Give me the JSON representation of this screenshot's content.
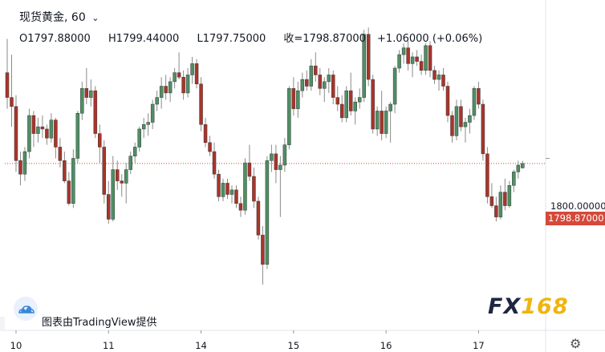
{
  "header": {
    "symbol": "现货黄金",
    "interval": "60",
    "separator": ",",
    "open_label": "O1797.88000",
    "high_label": "H1799.44000",
    "low_label": "L1797.75000",
    "close_label": "收=1798.87000",
    "change_label": "+1.06000 (+0.06%)"
  },
  "attribution": "图表由TradingView提供",
  "brand": {
    "prefix": "FX",
    "suffix": "168"
  },
  "icons": {
    "logo": "cloud-logo-icon",
    "settings": "gear-icon",
    "dropdown": "chevron-down-icon"
  },
  "colors": {
    "up": "#4e8f64",
    "down": "#a9342a",
    "last_price": "#d4493a",
    "brand_gold": "#f0b40e"
  },
  "chart_data": {
    "type": "candlestick",
    "symbol": "现货黄金",
    "interval": "60",
    "y_range": [
      1764,
      1828
    ],
    "y_axis_labels": [
      "1800.00000"
    ],
    "last_price_label": "1798.87000",
    "last_price": 1798.87,
    "x_tick_labels": [
      {
        "label": "10",
        "index": 2
      },
      {
        "label": "11",
        "index": 23
      },
      {
        "label": "14",
        "index": 44
      },
      {
        "label": "15",
        "index": 65
      },
      {
        "label": "16",
        "index": 86
      },
      {
        "label": "17",
        "index": 107
      }
    ],
    "candles": [
      [
        1819.0,
        1826.5,
        1811.0,
        1813.5
      ],
      [
        1813.5,
        1823.0,
        1807.0,
        1811.5
      ],
      [
        1811.5,
        1814.0,
        1797.0,
        1799.5
      ],
      [
        1799.5,
        1801.5,
        1794.0,
        1796.5
      ],
      [
        1796.5,
        1802.5,
        1795.0,
        1801.5
      ],
      [
        1801.5,
        1811.0,
        1800.0,
        1809.5
      ],
      [
        1809.5,
        1810.5,
        1802.5,
        1805.5
      ],
      [
        1805.5,
        1809.0,
        1803.5,
        1807.0
      ],
      [
        1807.0,
        1809.5,
        1804.5,
        1806.5
      ],
      [
        1806.5,
        1807.5,
        1803.0,
        1804.5
      ],
      [
        1804.5,
        1810.0,
        1803.5,
        1808.5
      ],
      [
        1808.5,
        1809.0,
        1800.0,
        1802.5
      ],
      [
        1802.5,
        1804.5,
        1798.0,
        1799.5
      ],
      [
        1799.5,
        1801.5,
        1794.5,
        1795.0
      ],
      [
        1795.0,
        1797.0,
        1789.5,
        1790.0
      ],
      [
        1790.0,
        1802.0,
        1789.0,
        1800.0
      ],
      [
        1800.0,
        1810.5,
        1799.0,
        1810.0
      ],
      [
        1810.0,
        1817.0,
        1808.5,
        1815.5
      ],
      [
        1815.5,
        1820.0,
        1812.0,
        1813.5
      ],
      [
        1813.5,
        1817.5,
        1811.5,
        1815.0
      ],
      [
        1815.0,
        1816.0,
        1804.5,
        1805.5
      ],
      [
        1805.5,
        1807.5,
        1799.0,
        1802.5
      ],
      [
        1802.5,
        1804.0,
        1790.0,
        1792.0
      ],
      [
        1792.0,
        1795.0,
        1785.5,
        1786.5
      ],
      [
        1786.5,
        1800.5,
        1786.0,
        1797.5
      ],
      [
        1797.5,
        1799.5,
        1793.0,
        1795.0
      ],
      [
        1795.0,
        1796.5,
        1791.5,
        1794.5
      ],
      [
        1794.5,
        1799.0,
        1790.0,
        1797.5
      ],
      [
        1797.5,
        1801.5,
        1796.5,
        1800.5
      ],
      [
        1800.5,
        1803.5,
        1799.0,
        1802.5
      ],
      [
        1802.5,
        1807.0,
        1801.5,
        1806.5
      ],
      [
        1806.5,
        1809.0,
        1804.5,
        1807.5
      ],
      [
        1807.5,
        1810.0,
        1805.0,
        1808.0
      ],
      [
        1808.0,
        1813.0,
        1806.5,
        1812.0
      ],
      [
        1812.0,
        1815.0,
        1810.5,
        1813.5
      ],
      [
        1813.5,
        1818.0,
        1811.0,
        1816.0
      ],
      [
        1816.0,
        1818.5,
        1813.0,
        1814.5
      ],
      [
        1814.5,
        1818.0,
        1812.5,
        1817.0
      ],
      [
        1817.0,
        1820.0,
        1815.5,
        1819.0
      ],
      [
        1819.0,
        1823.5,
        1817.5,
        1818.0
      ],
      [
        1818.0,
        1819.5,
        1813.0,
        1814.5
      ],
      [
        1814.5,
        1820.0,
        1813.5,
        1818.5
      ],
      [
        1818.5,
        1822.5,
        1816.5,
        1821.0
      ],
      [
        1821.0,
        1822.0,
        1815.5,
        1816.5
      ],
      [
        1816.5,
        1818.0,
        1806.0,
        1807.5
      ],
      [
        1807.5,
        1809.0,
        1802.5,
        1803.5
      ],
      [
        1803.5,
        1805.0,
        1800.5,
        1801.5
      ],
      [
        1801.5,
        1803.5,
        1795.5,
        1796.5
      ],
      [
        1796.5,
        1797.5,
        1790.5,
        1791.5
      ],
      [
        1791.5,
        1795.5,
        1790.5,
        1794.5
      ],
      [
        1794.5,
        1795.5,
        1791.0,
        1792.0
      ],
      [
        1792.0,
        1794.0,
        1790.0,
        1793.0
      ],
      [
        1793.0,
        1794.0,
        1789.0,
        1790.0
      ],
      [
        1790.0,
        1791.5,
        1787.0,
        1788.5
      ],
      [
        1788.5,
        1800.0,
        1787.5,
        1799.0
      ],
      [
        1799.0,
        1803.0,
        1795.0,
        1796.0
      ],
      [
        1796.0,
        1798.0,
        1789.0,
        1790.5
      ],
      [
        1790.5,
        1791.5,
        1782.0,
        1783.0
      ],
      [
        1783.0,
        1785.0,
        1772.0,
        1776.5
      ],
      [
        1776.5,
        1800.5,
        1775.5,
        1799.5
      ],
      [
        1799.5,
        1803.0,
        1797.0,
        1801.0
      ],
      [
        1801.0,
        1803.0,
        1794.5,
        1797.5
      ],
      [
        1797.5,
        1800.5,
        1787.0,
        1798.5
      ],
      [
        1798.5,
        1804.5,
        1797.0,
        1803.0
      ],
      [
        1803.0,
        1816.0,
        1802.0,
        1815.5
      ],
      [
        1815.5,
        1818.0,
        1809.5,
        1811.0
      ],
      [
        1811.0,
        1817.0,
        1809.0,
        1815.0
      ],
      [
        1815.0,
        1819.0,
        1813.5,
        1817.5
      ],
      [
        1817.5,
        1819.5,
        1815.0,
        1816.0
      ],
      [
        1816.0,
        1822.0,
        1815.0,
        1820.5
      ],
      [
        1820.5,
        1823.5,
        1817.0,
        1818.5
      ],
      [
        1818.5,
        1820.0,
        1814.0,
        1815.5
      ],
      [
        1815.5,
        1818.0,
        1812.5,
        1817.0
      ],
      [
        1817.0,
        1820.0,
        1814.5,
        1818.5
      ],
      [
        1818.5,
        1819.5,
        1812.0,
        1813.5
      ],
      [
        1813.5,
        1816.0,
        1810.5,
        1812.0
      ],
      [
        1812.0,
        1814.0,
        1808.0,
        1809.0
      ],
      [
        1809.0,
        1816.0,
        1808.0,
        1815.0
      ],
      [
        1815.0,
        1819.0,
        1809.5,
        1810.5
      ],
      [
        1810.5,
        1813.5,
        1807.5,
        1812.5
      ],
      [
        1812.5,
        1815.5,
        1811.0,
        1813.5
      ],
      [
        1813.5,
        1828.5,
        1812.5,
        1827.5
      ],
      [
        1827.5,
        1829.0,
        1816.0,
        1817.5
      ],
      [
        1817.5,
        1818.5,
        1805.5,
        1806.5
      ],
      [
        1806.5,
        1811.5,
        1805.0,
        1810.5
      ],
      [
        1810.5,
        1815.0,
        1804.0,
        1805.5
      ],
      [
        1805.5,
        1811.5,
        1804.5,
        1810.5
      ],
      [
        1810.5,
        1812.5,
        1803.5,
        1812.0
      ],
      [
        1812.0,
        1820.5,
        1810.0,
        1820.0
      ],
      [
        1820.0,
        1824.0,
        1819.0,
        1823.0
      ],
      [
        1823.0,
        1825.5,
        1821.0,
        1824.5
      ],
      [
        1824.5,
        1826.0,
        1819.5,
        1821.0
      ],
      [
        1821.0,
        1823.5,
        1818.0,
        1822.5
      ],
      [
        1822.5,
        1824.0,
        1820.5,
        1821.5
      ],
      [
        1821.5,
        1823.0,
        1818.5,
        1819.5
      ],
      [
        1819.5,
        1825.5,
        1818.5,
        1825.0
      ],
      [
        1825.0,
        1826.0,
        1818.0,
        1819.5
      ],
      [
        1819.5,
        1820.5,
        1816.5,
        1817.5
      ],
      [
        1817.5,
        1819.5,
        1815.0,
        1818.5
      ],
      [
        1818.5,
        1820.0,
        1815.0,
        1816.0
      ],
      [
        1816.0,
        1817.0,
        1808.0,
        1809.5
      ],
      [
        1809.5,
        1810.5,
        1803.5,
        1805.0
      ],
      [
        1805.0,
        1813.0,
        1804.0,
        1811.5
      ],
      [
        1811.5,
        1813.0,
        1806.0,
        1807.0
      ],
      [
        1807.0,
        1809.0,
        1803.5,
        1808.0
      ],
      [
        1808.0,
        1811.0,
        1805.5,
        1809.5
      ],
      [
        1809.5,
        1816.0,
        1808.5,
        1815.5
      ],
      [
        1815.5,
        1817.0,
        1811.0,
        1812.0
      ],
      [
        1812.0,
        1813.0,
        1799.5,
        1801.0
      ],
      [
        1801.0,
        1802.5,
        1790.0,
        1791.5
      ],
      [
        1791.5,
        1794.5,
        1789.0,
        1789.5
      ],
      [
        1789.5,
        1791.5,
        1786.0,
        1787.0
      ],
      [
        1787.0,
        1794.0,
        1786.5,
        1792.5
      ],
      [
        1792.5,
        1795.5,
        1788.5,
        1789.5
      ],
      [
        1789.5,
        1795.0,
        1789.0,
        1794.0
      ],
      [
        1794.0,
        1797.5,
        1792.5,
        1797.0
      ],
      [
        1797.0,
        1799.5,
        1795.5,
        1798.5
      ],
      [
        1797.88,
        1799.44,
        1797.75,
        1798.87
      ]
    ]
  }
}
